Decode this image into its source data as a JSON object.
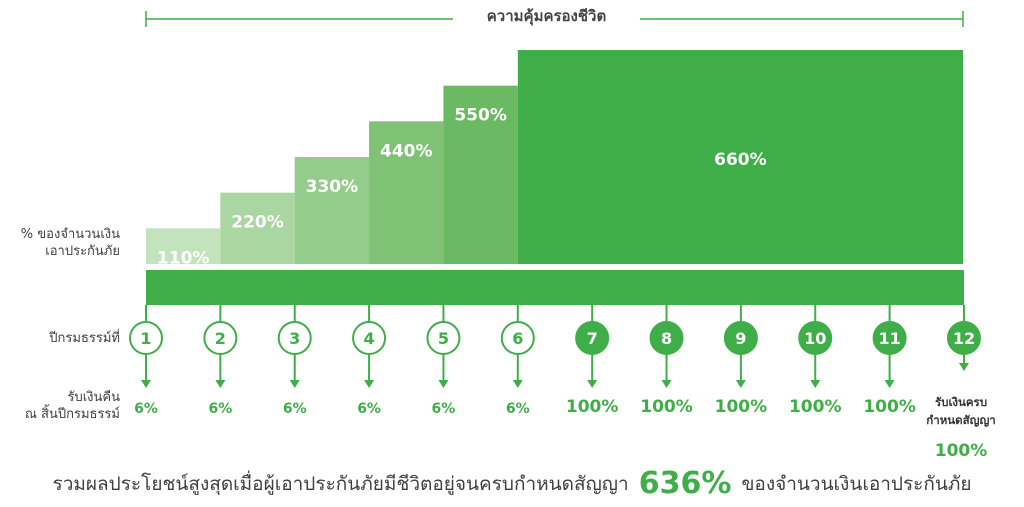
{
  "coverage_label": "ความคุ้มครองชีวิต",
  "coverage_pct_label": [
    "% ของจำนวนเงิน",
    "เอาประกันภัย"
  ],
  "policy_year_label": "ปีกรมธรรม์ที่",
  "cashback_label": [
    "รับเงินคืน",
    "ณ สิ้นปีกรมธรรม์"
  ],
  "maturity_label": [
    "รับเงินครบ",
    "กำหนดสัญญา"
  ],
  "maturity_value": "100%",
  "summary": {
    "before": "รวมผลประโยชน์สูงสุดเมื่อผู้เอาประกันภัยมีชีวิตอยู่จนครบกำหนดสัญญา",
    "highlight": "636%",
    "after": "ของจำนวนเงินเอาประกันภัย"
  },
  "colors": {
    "dark_green": "#3fae49",
    "step_colors": [
      "#c3e3bd",
      "#a9d6a1",
      "#94cc8b",
      "#7fc276",
      "#6bb962",
      "#3fae49"
    ]
  },
  "chart_data": {
    "type": "bar",
    "coverage_steps": [
      {
        "years": [
          1
        ],
        "value": 110,
        "label": "110%"
      },
      {
        "years": [
          2
        ],
        "value": 220,
        "label": "220%"
      },
      {
        "years": [
          3
        ],
        "value": 330,
        "label": "330%"
      },
      {
        "years": [
          4
        ],
        "value": 440,
        "label": "440%"
      },
      {
        "years": [
          5
        ],
        "value": 550,
        "label": "550%"
      },
      {
        "years": [
          6,
          7,
          8,
          9,
          10,
          11,
          12
        ],
        "value": 660,
        "label": "660%"
      }
    ],
    "years": [
      {
        "year": "1",
        "cashback": "6%"
      },
      {
        "year": "2",
        "cashback": "6%"
      },
      {
        "year": "3",
        "cashback": "6%"
      },
      {
        "year": "4",
        "cashback": "6%"
      },
      {
        "year": "5",
        "cashback": "6%"
      },
      {
        "year": "6",
        "cashback": "6%"
      },
      {
        "year": "7",
        "cashback": "100%"
      },
      {
        "year": "8",
        "cashback": "100%"
      },
      {
        "year": "9",
        "cashback": "100%"
      },
      {
        "year": "10",
        "cashback": "100%"
      },
      {
        "year": "11",
        "cashback": "100%"
      },
      {
        "year": "12",
        "cashback": ""
      }
    ]
  }
}
